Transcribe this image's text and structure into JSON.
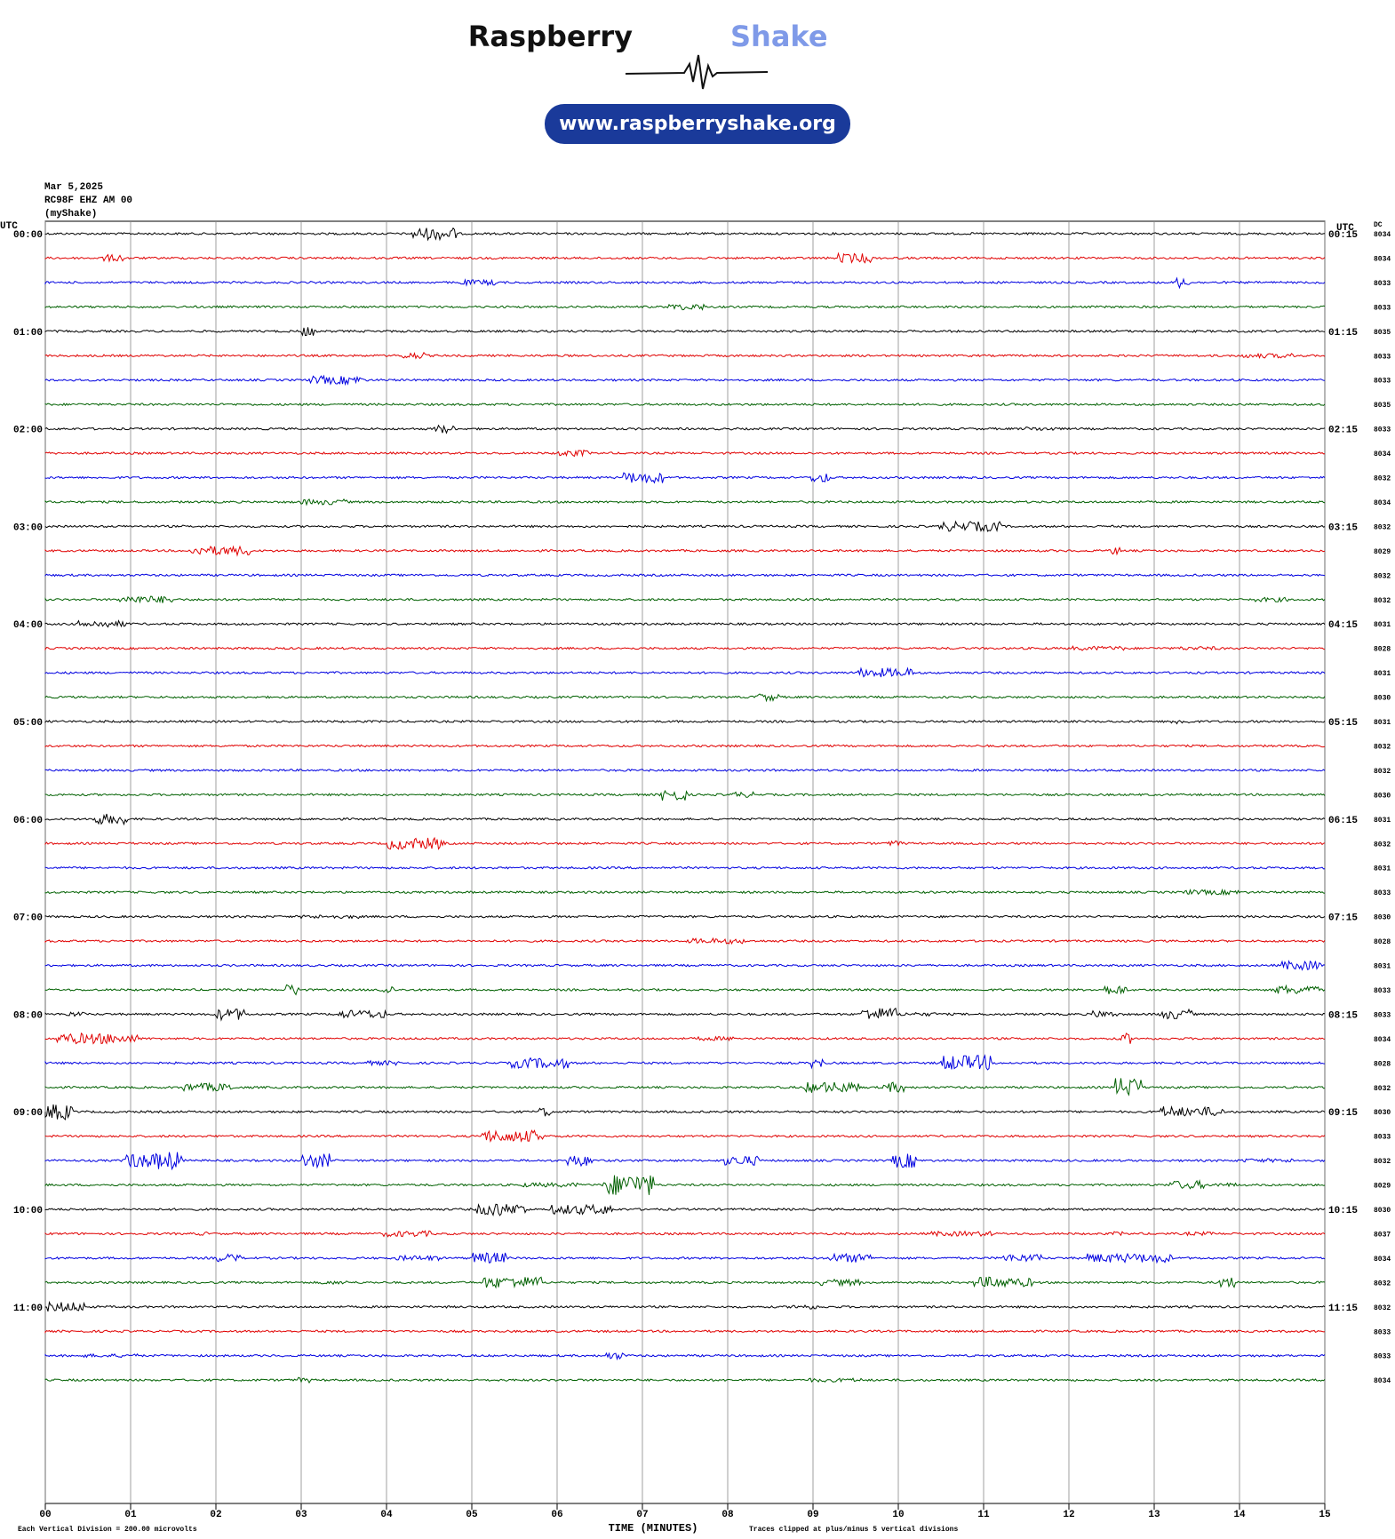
{
  "logo": {
    "brand_first": "Raspberry",
    "brand_second": "Shake",
    "url": "www.raspberryshake.org"
  },
  "chart_data": {
    "type": "helicorder",
    "date": "Mar 5,2025",
    "station": "RC98F EHZ AM 00",
    "network": "(myShake)",
    "left_axis_title": "UTC",
    "right_axis_title": "UTC",
    "dc_title": "DC",
    "row_labels_left": [
      "00:00",
      null,
      null,
      null,
      "01:00",
      null,
      null,
      null,
      "02:00",
      null,
      null,
      null,
      "03:00",
      null,
      null,
      null,
      "04:00",
      null,
      null,
      null,
      "05:00",
      null,
      null,
      null,
      "06:00",
      null,
      null,
      null,
      "07:00",
      null,
      null,
      null,
      "08:00",
      null,
      null,
      null,
      "09:00",
      null,
      null,
      null,
      "10:00",
      null,
      null,
      null,
      "11:00",
      null,
      null,
      null
    ],
    "row_labels_right": [
      "00:15",
      null,
      null,
      null,
      "01:15",
      null,
      null,
      null,
      "02:15",
      null,
      null,
      null,
      "03:15",
      null,
      null,
      null,
      "04:15",
      null,
      null,
      null,
      "05:15",
      null,
      null,
      null,
      "06:15",
      null,
      null,
      null,
      "07:15",
      null,
      null,
      null,
      "08:15",
      null,
      null,
      null,
      "09:15",
      null,
      null,
      null,
      "10:15",
      null,
      null,
      null,
      "11:15",
      null,
      null,
      null
    ],
    "dc": [
      8034,
      8034,
      8033,
      8033,
      8035,
      8033,
      8033,
      8035,
      8033,
      8034,
      8032,
      8034,
      8032,
      8029,
      8032,
      8032,
      8031,
      8028,
      8031,
      8030,
      8031,
      8032,
      8032,
      8030,
      8031,
      8032,
      8031,
      8033,
      8030,
      8028,
      8031,
      8033,
      8033,
      8034,
      8028,
      8032,
      8030,
      8033,
      8032,
      8029,
      8030,
      8037,
      8034,
      8032,
      8032,
      8033,
      8033,
      8034
    ],
    "colors": [
      "#000000",
      "#e00000",
      "#0000e0",
      "#006000"
    ],
    "xlabel": "TIME (MINUTES)",
    "xlim": [
      0,
      15
    ],
    "xticks": [
      {
        "value": 0,
        "label": "00"
      },
      {
        "value": 1,
        "label": "01"
      },
      {
        "value": 2,
        "label": "02"
      },
      {
        "value": 3,
        "label": "03"
      },
      {
        "value": 4,
        "label": "04"
      },
      {
        "value": 5,
        "label": "05"
      },
      {
        "value": 6,
        "label": "06"
      },
      {
        "value": 7,
        "label": "07"
      },
      {
        "value": 8,
        "label": "08"
      },
      {
        "value": 9,
        "label": "09"
      },
      {
        "value": 10,
        "label": "10"
      },
      {
        "value": 11,
        "label": "11"
      },
      {
        "value": 12,
        "label": "12"
      },
      {
        "value": 13,
        "label": "13"
      },
      {
        "value": 14,
        "label": "14"
      },
      {
        "value": 15,
        "label": "15"
      }
    ],
    "grid": true,
    "footer_left": "Each Vertical Division =  200.00 microvolts",
    "footer_right": "Traces clipped at plus/minus 5 vertical divisions"
  }
}
